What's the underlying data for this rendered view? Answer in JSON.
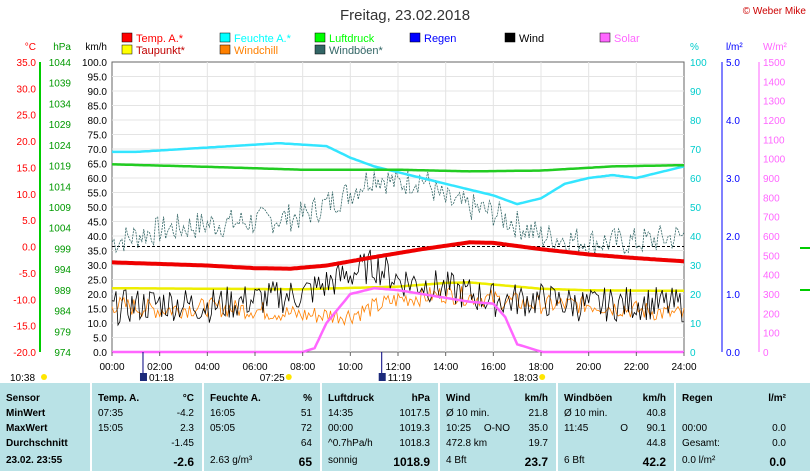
{
  "title": "Freitag, 23.02.2018",
  "credit": "© Weber Mike",
  "legend": [
    {
      "label": "Temp. A.*",
      "color": "#ff0000"
    },
    {
      "label": "Feuchte A.*",
      "color": "#00ffff"
    },
    {
      "label": "Luftdruck",
      "color": "#00ff00"
    },
    {
      "label": "Regen",
      "color": "#0000ff"
    },
    {
      "label": "Wind",
      "color": "#000000"
    },
    {
      "label": "Solar",
      "color": "#ff66ff"
    },
    {
      "label": "Taupunkt*",
      "color": "#ffff00"
    },
    {
      "label": "Windchill",
      "color": "#ff8000"
    },
    {
      "label": "Windböen*",
      "color": "#336666"
    }
  ],
  "axes": {
    "temp": {
      "unit": "°C",
      "color": "#ff0000",
      "ticks": [
        "35.0",
        "30.0",
        "25.0",
        "20.0",
        "15.0",
        "10.0",
        "5.0",
        "0.0",
        "-5.0",
        "-10.0",
        "-15.0",
        "-20.0"
      ]
    },
    "pres": {
      "unit": "hPa",
      "color": "#009900",
      "ticks": [
        "1044",
        "1039",
        "1034",
        "1029",
        "1024",
        "1019",
        "1014",
        "1009",
        "1004",
        "999",
        "994",
        "989",
        "984",
        "979",
        "974"
      ]
    },
    "wind": {
      "unit": "km/h",
      "color": "#000000",
      "ticks": [
        "100.0",
        "95.0",
        "90.0",
        "85.0",
        "80.0",
        "75.0",
        "70.0",
        "65.0",
        "60.0",
        "55.0",
        "50.0",
        "45.0",
        "40.0",
        "35.0",
        "30.0",
        "25.0",
        "20.0",
        "15.0",
        "10.0",
        "5.0",
        "0.0"
      ]
    },
    "hum": {
      "unit": "%",
      "color": "#00cccc",
      "ticks": [
        "100",
        "90",
        "80",
        "70",
        "60",
        "50",
        "40",
        "30",
        "20",
        "10",
        "0"
      ]
    },
    "rain": {
      "unit": "l/m²",
      "color": "#0000ff",
      "ticks": [
        "5.0",
        "4.0",
        "3.0",
        "2.0",
        "1.0",
        "0.0"
      ]
    },
    "solar": {
      "unit": "W/m²",
      "color": "#ff66ff",
      "ticks": [
        "1500",
        "1400",
        "1300",
        "1200",
        "1100",
        "1000",
        "900",
        "800",
        "700",
        "600",
        "500",
        "400",
        "300",
        "200",
        "100",
        "0"
      ]
    },
    "x_ticks": [
      "00:00",
      "02:00",
      "04:00",
      "06:00",
      "08:00",
      "10:00",
      "12:00",
      "14:00",
      "16:00",
      "18:00",
      "20:00",
      "22:00",
      "24:00"
    ]
  },
  "sun_markers": {
    "sunrise": "07:25",
    "sunset": "18:03",
    "moonrise": "01:18",
    "moonset": "11:19",
    "daylength": "10:38"
  },
  "chart_data": {
    "type": "line",
    "x_unit": "hour",
    "series": [
      {
        "name": "Temp. A.*",
        "unit": "°C",
        "x": [
          0,
          2,
          4,
          6,
          7.5,
          9,
          11,
          13,
          15,
          16,
          18,
          20,
          22,
          24
        ],
        "y": [
          -3.0,
          -3.3,
          -3.6,
          -4.1,
          -4.2,
          -3.6,
          -2.0,
          -0.5,
          0.8,
          0.7,
          -0.5,
          -1.5,
          -2.2,
          -2.8
        ]
      },
      {
        "name": "Feuchte A.*",
        "unit": "%",
        "x": [
          0,
          1,
          3,
          5,
          7,
          9,
          10,
          11,
          12,
          14,
          16,
          17,
          18,
          19,
          20,
          21,
          22,
          23,
          24
        ],
        "y": [
          69,
          69,
          70,
          71,
          72,
          71,
          67,
          64,
          62,
          58,
          54,
          51,
          53,
          58,
          60,
          61,
          60,
          62,
          64
        ]
      },
      {
        "name": "Luftdruck",
        "unit": "hPa",
        "x": [
          0,
          4,
          8,
          12,
          15,
          18,
          21,
          24
        ],
        "y": [
          1019.3,
          1018.7,
          1018.0,
          1018.0,
          1017.6,
          1017.8,
          1018.8,
          1019.1
        ]
      },
      {
        "name": "Taupunkt*",
        "unit": "°C",
        "x": [
          0,
          4,
          8,
          12,
          14,
          15,
          16,
          18,
          20,
          24
        ],
        "y": [
          -7.9,
          -8.0,
          -8.1,
          -7.6,
          -6.9,
          -6.8,
          -7.2,
          -8.0,
          -8.3,
          -8.4
        ]
      },
      {
        "name": "Solar",
        "unit": "W/m²",
        "x": [
          0,
          7.4,
          8,
          8.5,
          9,
          10,
          11,
          12,
          13,
          14,
          15,
          16,
          16.5,
          17,
          18.05,
          24
        ],
        "y": [
          0,
          0,
          0,
          20,
          150,
          300,
          330,
          320,
          300,
          280,
          260,
          250,
          180,
          40,
          0,
          0
        ]
      },
      {
        "name": "Wind",
        "unit": "km/h",
        "x": [
          0,
          2,
          4,
          6,
          8,
          10,
          11,
          12,
          14,
          16,
          18,
          20,
          22,
          24
        ],
        "y": [
          15,
          17,
          16,
          18,
          20,
          27,
          30,
          25,
          22,
          18,
          18,
          16,
          17,
          16
        ]
      },
      {
        "name": "Windchill",
        "unit": "°C",
        "x": [
          0,
          2,
          4,
          6,
          8,
          10,
          12,
          14,
          16,
          18,
          20,
          22,
          24
        ],
        "y": [
          -11,
          -12,
          -11.5,
          -12,
          -13,
          -13,
          -10,
          -9,
          -10,
          -11,
          -11,
          -12,
          -13
        ]
      },
      {
        "name": "Windböen*",
        "unit": "km/h",
        "x": [
          0,
          2,
          4,
          6,
          8,
          10,
          11,
          12,
          13,
          14,
          16,
          18,
          20,
          22,
          24
        ],
        "y": [
          38,
          42,
          44,
          45,
          47,
          55,
          61,
          58,
          60,
          52,
          48,
          40,
          38,
          38,
          40
        ]
      }
    ]
  },
  "table": {
    "rowlabels": [
      "Sensor",
      "MinWert",
      "MaxWert",
      "Durchschnitt",
      "23.02. 23:55"
    ],
    "temp": {
      "head": "Temp. A.",
      "unit": "°C",
      "rows": [
        [
          "07:35",
          "-4.2"
        ],
        [
          "15:05",
          "2.3"
        ],
        [
          "",
          "-1.45"
        ],
        [
          "",
          "-2.6"
        ]
      ]
    },
    "hum": {
      "head": "Feuchte A.",
      "unit": "%",
      "rows": [
        [
          "16:05",
          "51"
        ],
        [
          "05:05",
          "72"
        ],
        [
          "",
          "64"
        ],
        [
          "2.63 g/m³",
          "65"
        ]
      ]
    },
    "pres": {
      "head": "Luftdruck",
      "unit": "hPa",
      "rows": [
        [
          "14:35",
          "1017.5"
        ],
        [
          "00:00",
          "1019.3"
        ],
        [
          "^0.7hPa/h",
          "1018.3"
        ],
        [
          "sonnig",
          "1018.9"
        ]
      ]
    },
    "wind": {
      "head": "Wind",
      "unit": "km/h",
      "rows": [
        [
          "Ø 10 min.",
          "",
          "21.8"
        ],
        [
          "10:25",
          "O-NO",
          "35.0"
        ],
        [
          "472.8 km",
          "",
          "19.7"
        ],
        [
          "4 Bft",
          "",
          "23.7"
        ]
      ]
    },
    "gust": {
      "head": "Windböen",
      "unit": "km/h",
      "rows": [
        [
          "Ø 10 min.",
          "",
          "40.8"
        ],
        [
          "11:45",
          "O",
          "90.1"
        ],
        [
          "",
          "",
          "44.8"
        ],
        [
          "6 Bft",
          "",
          "42.2"
        ]
      ]
    },
    "rain": {
      "head": "Regen",
      "unit": "l/m²",
      "rows": [
        [
          "",
          ""
        ],
        [
          "00:00",
          "0.0"
        ],
        [
          "Gesamt:",
          "0.0"
        ],
        [
          "0.0 l/m²",
          "0.0"
        ]
      ]
    }
  }
}
